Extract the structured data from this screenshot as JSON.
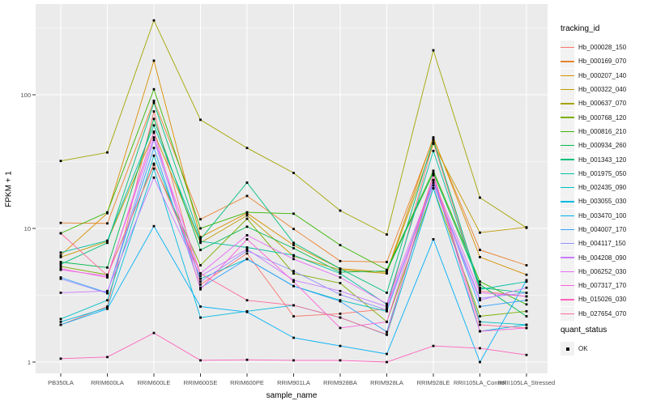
{
  "chart_data": {
    "type": "line",
    "title": "",
    "xlabel": "sample_name",
    "ylabel": "FPKM + 1",
    "y_scale": "log10",
    "y_ticks": [
      1,
      10,
      100
    ],
    "ylim": [
      0.82,
      478
    ],
    "grid": true,
    "legend_position": "right",
    "legend_title": "tracking_id",
    "point_marker": "black-square",
    "colors": {
      "panel_bg": "#EBEBEB",
      "grid": "#FFFFFF",
      "tick": "#333333",
      "tick_text": "#4D4D4D",
      "legend_key_bg": "#F2F2F2",
      "point": "#000000"
    },
    "x": [
      "PB350LA",
      "RRIM600LA",
      "RRIM600LE",
      "RRIM600SE",
      "RRIM600PE",
      "RRIM901LA",
      "RRIM928BA",
      "RRIM928LA",
      "RRIM928LE",
      "RRII105LA_Control",
      "RRII105LA_Stressed"
    ],
    "series": [
      {
        "name": "Hb_000028_150",
        "color": "#F8766D",
        "values": [
          1.9,
          2.6,
          75,
          3.8,
          6.5,
          2.2,
          2.3,
          2.5,
          44,
          3.4,
          3.1
        ]
      },
      {
        "name": "Hb_000169_070",
        "color": "#EA8331",
        "values": [
          11.0,
          10.9,
          90,
          11.7,
          17.5,
          9.9,
          5.7,
          5.6,
          47,
          6.9,
          5.3
        ]
      },
      {
        "name": "Hb_000207_140",
        "color": "#D89000",
        "values": [
          6.3,
          13.0,
          180,
          8.6,
          13.0,
          7.5,
          5.0,
          4.7,
          48,
          6.1,
          4.5
        ]
      },
      {
        "name": "Hb_000322_040",
        "color": "#C09B00",
        "values": [
          6.1,
          8.0,
          52,
          7.8,
          12.5,
          6.2,
          4.9,
          4.6,
          43,
          9.3,
          10.2
        ]
      },
      {
        "name": "Hb_000637_070",
        "color": "#A3A500",
        "values": [
          32,
          37,
          360,
          65,
          40,
          26,
          13.6,
          9.0,
          215,
          17,
          10.1
        ]
      },
      {
        "name": "Hb_000768_120",
        "color": "#7CAE00",
        "values": [
          5.2,
          4.5,
          30,
          5.3,
          11.8,
          4.6,
          3.9,
          2.0,
          20,
          2.2,
          2.4
        ]
      },
      {
        "name": "Hb_000816_210",
        "color": "#39B600",
        "values": [
          9.2,
          13.2,
          110,
          10.0,
          13.2,
          12.9,
          7.5,
          4.9,
          27,
          4.0,
          2.7
        ]
      },
      {
        "name": "Hb_000934_260",
        "color": "#00BB4E",
        "values": [
          5.6,
          5.1,
          66,
          6.9,
          10.3,
          7.1,
          4.7,
          4.8,
          26,
          3.8,
          2.2
        ]
      },
      {
        "name": "Hb_001343_120",
        "color": "#00BF7D",
        "values": [
          5.4,
          7.8,
          87,
          8.3,
          22,
          7.8,
          5.0,
          3.3,
          46,
          3.6,
          3.3
        ]
      },
      {
        "name": "Hb_001975_050",
        "color": "#00C1A3",
        "values": [
          6.6,
          8.1,
          59,
          8.0,
          7.2,
          6.3,
          4.6,
          2.7,
          38,
          3.5,
          4.0
        ]
      },
      {
        "name": "Hb_002435_090",
        "color": "#00BFC4",
        "values": [
          2.1,
          2.9,
          35,
          4.2,
          5.9,
          3.7,
          2.9,
          2.4,
          23,
          2.0,
          1.9
        ]
      },
      {
        "name": "Hb_003055_030",
        "color": "#00BAE0",
        "values": [
          2.0,
          2.55,
          28,
          2.15,
          2.4,
          2.66,
          2.15,
          1.6,
          20,
          1.7,
          1.9
        ]
      },
      {
        "name": "Hb_003470_100",
        "color": "#00B0F6",
        "values": [
          1.9,
          2.5,
          10.4,
          2.6,
          2.37,
          1.52,
          1.32,
          1.15,
          8.3,
          1.0,
          4.1
        ]
      },
      {
        "name": "Hb_004007_170",
        "color": "#35A2FF",
        "values": [
          4.3,
          3.3,
          40,
          3.6,
          5.9,
          3.7,
          2.85,
          1.68,
          23,
          2.6,
          2.9
        ]
      },
      {
        "name": "Hb_004117_150",
        "color": "#9590FF",
        "values": [
          4.2,
          3.27,
          46,
          4.0,
          6.8,
          4.8,
          3.2,
          2.45,
          22,
          3.0,
          3.3
        ]
      },
      {
        "name": "Hb_004208_090",
        "color": "#C77CFF",
        "values": [
          3.3,
          3.4,
          24,
          4.4,
          7.0,
          4.1,
          3.4,
          2.6,
          21,
          2.9,
          3.6
        ]
      },
      {
        "name": "Hb_006252_030",
        "color": "#E76BF3",
        "values": [
          4.9,
          4.4,
          48,
          4.6,
          8.9,
          5.9,
          4.3,
          2.73,
          23,
          3.3,
          3.1
        ]
      },
      {
        "name": "Hb_007317_170",
        "color": "#FA62DB",
        "values": [
          5.0,
          4.3,
          53,
          3.5,
          8.3,
          4.0,
          1.8,
          2.0,
          25,
          1.7,
          1.8
        ]
      },
      {
        "name": "Hb_015026_030",
        "color": "#FF62BC",
        "values": [
          1.06,
          1.09,
          1.65,
          1.03,
          1.04,
          1.03,
          1.03,
          1.0,
          1.32,
          1.27,
          1.13
        ]
      },
      {
        "name": "Hb_027654_070",
        "color": "#FF6A98",
        "values": [
          9.2,
          4.45,
          30.5,
          4.6,
          2.9,
          2.66,
          2.15,
          1.61,
          25.5,
          1.9,
          1.8
        ]
      }
    ],
    "quant_status": {
      "title": "quant_status",
      "items": [
        {
          "label": "OK",
          "marker": "black-square"
        }
      ]
    }
  }
}
